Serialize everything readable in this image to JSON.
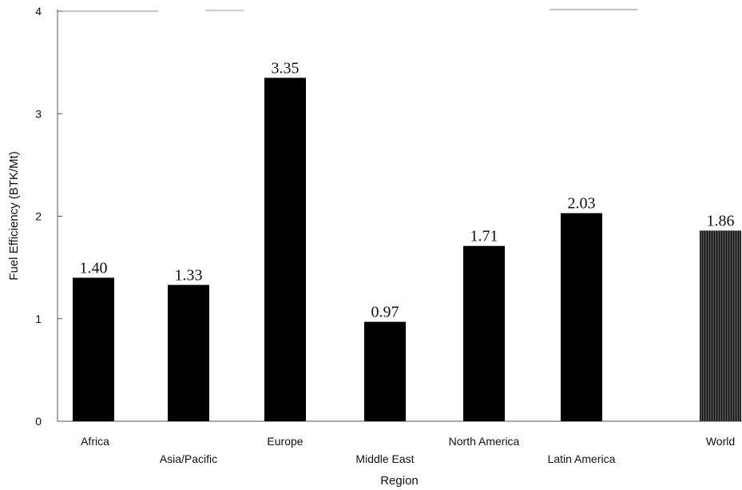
{
  "chart_data": {
    "type": "bar",
    "categories": [
      "Africa",
      "Asia/Pacific",
      "Europe",
      "Middle East",
      "North America",
      "Latin America",
      "World"
    ],
    "values": [
      1.4,
      1.33,
      3.35,
      0.97,
      1.71,
      2.03,
      1.86
    ],
    "data_labels": [
      "1.40",
      "1.33",
      "3.35",
      "0.97",
      "1.71",
      "2.03",
      "1.86"
    ],
    "xlabel": "Region",
    "ylabel": "Fuel Efficiency (BTK/Mt)",
    "ylim": [
      0,
      4
    ],
    "yticks": [
      "0",
      "1",
      "2",
      "3",
      "4"
    ],
    "grid": false,
    "colors": {
      "bar": "#000000",
      "highlight_bar": "#1a1a1a",
      "axis": "#555555"
    }
  }
}
